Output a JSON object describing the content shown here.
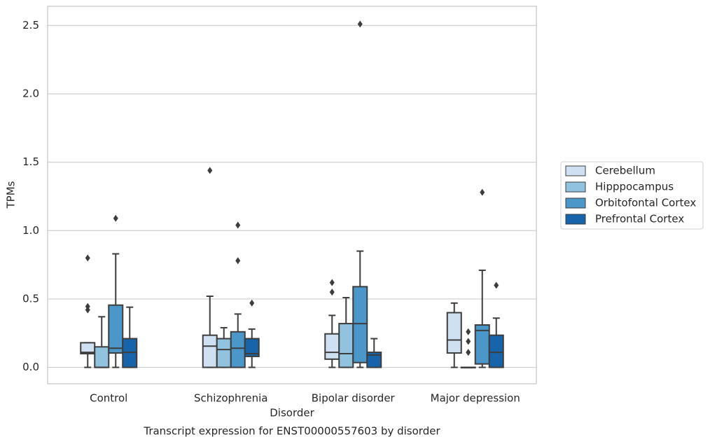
{
  "chart_data": {
    "type": "boxplot",
    "title": "Transcript expression for ENST00000557603 by disorder",
    "xlabel": "Disorder",
    "ylabel": "TPMs",
    "categories": [
      "Control",
      "Schizophrenia",
      "Bipolar disorder",
      "Major depression"
    ],
    "ylim": [
      -0.12,
      2.64
    ],
    "yticks": [
      {
        "value": 0,
        "label": "0.0"
      },
      0.5,
      {
        "value": 1,
        "label": "1.0"
      },
      1.5,
      {
        "value": 2,
        "label": "2.0"
      },
      2.5
    ],
    "grid": true,
    "legend": "right",
    "series": [
      {
        "name": "Cerebellum",
        "color": "#cee0f2",
        "boxes": [
          {
            "low": 0,
            "q1": 0.1,
            "median": 0.11,
            "q3": 0.18,
            "high": 0.18,
            "outliers": [
              0.8,
              0.445,
              0.42
            ]
          },
          {
            "low": 0,
            "q1": 0,
            "median": 0.155,
            "q3": 0.235,
            "high": 0.52,
            "outliers": [
              1.44
            ]
          },
          {
            "low": 0,
            "q1": 0.06,
            "median": 0.11,
            "q3": 0.245,
            "high": 0.38,
            "outliers": [
              0.62,
              0.55
            ]
          },
          {
            "low": 0,
            "q1": 0.105,
            "median": 0.2,
            "q3": 0.4,
            "high": 0.47,
            "outliers": []
          }
        ]
      },
      {
        "name": "Hipppocampus",
        "color": "#91c3de",
        "boxes": [
          {
            "low": 0,
            "q1": 0,
            "median": 0,
            "q3": 0.15,
            "high": 0.37,
            "outliers": []
          },
          {
            "low": 0,
            "q1": 0,
            "median": 0.13,
            "q3": 0.21,
            "high": 0.29,
            "outliers": []
          },
          {
            "low": 0,
            "q1": 0,
            "median": 0.1,
            "q3": 0.32,
            "high": 0.51,
            "outliers": []
          },
          {
            "low": 0,
            "q1": 0,
            "median": 0,
            "q3": 0,
            "high": 0,
            "outliers": [
              0.26,
              0.19,
              0.11
            ]
          }
        ]
      },
      {
        "name": "Orbitofontal Cortex",
        "color": "#4b97c9",
        "boxes": [
          {
            "low": 0,
            "q1": 0.105,
            "median": 0.14,
            "q3": 0.455,
            "high": 0.83,
            "outliers": [
              1.09
            ]
          },
          {
            "low": 0,
            "q1": 0,
            "median": 0.14,
            "q3": 0.26,
            "high": 0.39,
            "outliers": [
              0.78,
              1.04
            ]
          },
          {
            "low": 0,
            "q1": 0.035,
            "median": 0.32,
            "q3": 0.59,
            "high": 0.85,
            "outliers": [
              2.51
            ]
          },
          {
            "low": 0,
            "q1": 0.025,
            "median": 0.27,
            "q3": 0.31,
            "high": 0.71,
            "outliers": [
              1.28
            ]
          }
        ]
      },
      {
        "name": "Prefrontal Cortex",
        "color": "#1764ab",
        "boxes": [
          {
            "low": 0,
            "q1": 0,
            "median": 0.11,
            "q3": 0.21,
            "high": 0.44,
            "outliers": []
          },
          {
            "low": 0,
            "q1": 0.08,
            "median": 0.1,
            "q3": 0.21,
            "high": 0.28,
            "outliers": [
              0.47
            ]
          },
          {
            "low": 0,
            "q1": 0,
            "median": 0.09,
            "q3": 0.11,
            "high": 0.21,
            "outliers": []
          },
          {
            "low": 0,
            "q1": 0,
            "median": 0.11,
            "q3": 0.235,
            "high": 0.36,
            "outliers": [
              0.6
            ]
          }
        ]
      }
    ]
  }
}
